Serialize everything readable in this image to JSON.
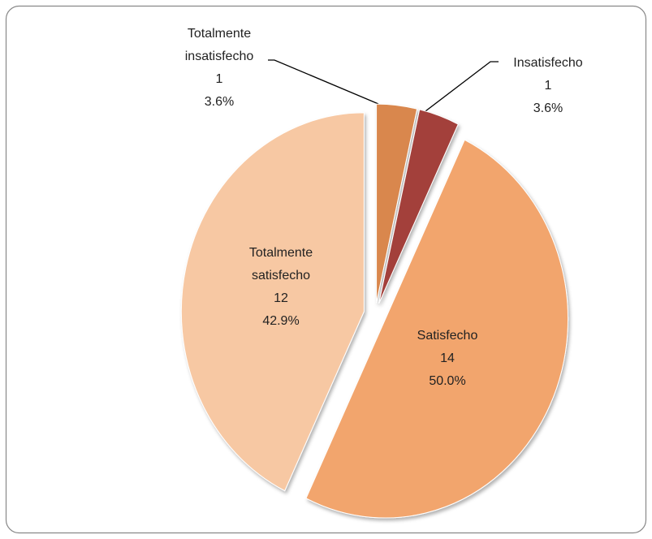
{
  "chart_data": {
    "type": "pie",
    "categories": [
      "Totalmente insatisfecho",
      "Insatisfecho",
      "Satisfecho",
      "Totalmente satisfecho"
    ],
    "values": [
      1,
      1,
      14,
      12
    ],
    "percent_labels": [
      "3.6%",
      "3.6%",
      "50.0%",
      "42.9%"
    ],
    "colors": [
      "#d9874e",
      "#a3413b",
      "#f2a56d",
      "#f7c8a3"
    ],
    "exploded": true
  }
}
